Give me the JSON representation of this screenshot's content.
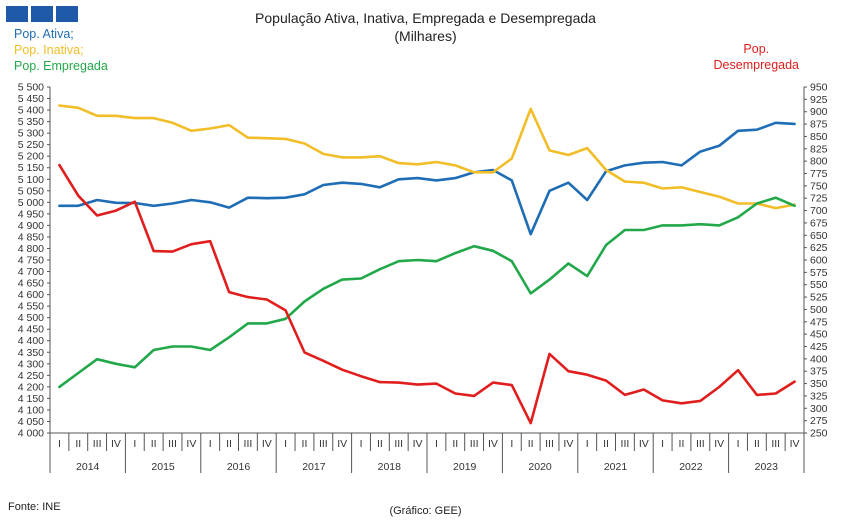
{
  "chart_data": {
    "type": "line",
    "title": "População Ativa, Inativa, Empregada e Desempregada",
    "subtitle": "(Milhares)",
    "quarters": [
      "I",
      "II",
      "III",
      "IV"
    ],
    "years": [
      "2014",
      "2015",
      "2016",
      "2017",
      "2018",
      "2019",
      "2020",
      "2021",
      "2022",
      "2023"
    ],
    "y_left": {
      "min": 4000,
      "max": 5500,
      "step": 50,
      "tick_labels": [
        "4 000",
        "4 050",
        "4 100",
        "4 150",
        "4 200",
        "4 250",
        "4 300",
        "4 350",
        "4 400",
        "4 450",
        "4 500",
        "4 550",
        "4 600",
        "4 650",
        "4 700",
        "4 750",
        "4 800",
        "4 850",
        "4 900",
        "4 950",
        "5 000",
        "5 050",
        "5 100",
        "5 150",
        "5 200",
        "5 250",
        "5 300",
        "5 350",
        "5 400",
        "5 450",
        "5 500"
      ]
    },
    "y_right": {
      "min": 250,
      "max": 950,
      "step": 25,
      "tick_labels": [
        "250",
        "275",
        "300",
        "325",
        "350",
        "375",
        "400",
        "425",
        "450",
        "475",
        "500",
        "525",
        "550",
        "575",
        "600",
        "625",
        "650",
        "675",
        "700",
        "725",
        "750",
        "775",
        "800",
        "825",
        "850",
        "875",
        "900",
        "925",
        "950"
      ]
    },
    "grid": false,
    "series": [
      {
        "name": "Pop. Ativa;",
        "axis": "left",
        "color": "#1f6db5",
        "values": [
          4985,
          4985,
          5010,
          4998,
          4997,
          4985,
          4995,
          5010,
          5000,
          4977,
          5020,
          5018,
          5020,
          5035,
          5075,
          5085,
          5080,
          5065,
          5100,
          5105,
          5095,
          5105,
          5130,
          5140,
          5095,
          4862,
          5050,
          5085,
          5010,
          5135,
          5160,
          5172,
          5175,
          5160,
          5220,
          5245,
          5310,
          5315,
          5345,
          5340
        ]
      },
      {
        "name": "Pop. Inativa;",
        "axis": "left",
        "color": "#f1bd28",
        "values": [
          5420,
          5410,
          5375,
          5375,
          5365,
          5365,
          5345,
          5310,
          5320,
          5335,
          5280,
          5278,
          5275,
          5255,
          5210,
          5195,
          5195,
          5200,
          5170,
          5165,
          5175,
          5160,
          5130,
          5130,
          5190,
          5405,
          5225,
          5205,
          5235,
          5140,
          5090,
          5085,
          5060,
          5065,
          5045,
          5025,
          4995,
          4995,
          4975,
          4990
        ]
      },
      {
        "name": "Pop. Empregada",
        "axis": "left",
        "color": "#22a84a",
        "values": [
          4200,
          4260,
          4320,
          4300,
          4285,
          4360,
          4375,
          4375,
          4360,
          4415,
          4475,
          4475,
          4495,
          4570,
          4625,
          4665,
          4670,
          4710,
          4745,
          4750,
          4745,
          4780,
          4810,
          4790,
          4745,
          4605,
          4665,
          4735,
          4680,
          4815,
          4880,
          4880,
          4900,
          4900,
          4905,
          4900,
          4935,
          4995,
          5020,
          4985
        ]
      },
      {
        "name": "Pop. Desempregada",
        "axis": "right",
        "color": "#e01e1e",
        "values": [
          792,
          730,
          690,
          700,
          718,
          618,
          617,
          632,
          638,
          535,
          525,
          520,
          498,
          413,
          396,
          378,
          365,
          353,
          352,
          348,
          350,
          330,
          325,
          352,
          347,
          270,
          410,
          375,
          368,
          356,
          327,
          338,
          316,
          310,
          315,
          343,
          377,
          327,
          330,
          354
        ]
      }
    ]
  },
  "legend_left": [
    "Pop. Ativa;",
    "Pop. Inativa;",
    "Pop. Empregada"
  ],
  "legend_right": [
    "Pop.",
    "Desempregada"
  ],
  "footer": {
    "source": "Fonte: INE",
    "credit": "(Gráfico: GEE)"
  }
}
